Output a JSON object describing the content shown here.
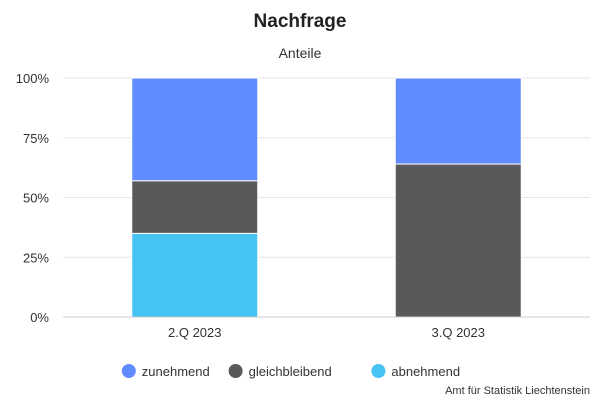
{
  "chart_data": {
    "type": "bar",
    "stacked": true,
    "title": "Nachfrage",
    "subtitle": "Anteile",
    "categories": [
      "2.Q 2023",
      "3.Q 2023"
    ],
    "series": [
      {
        "name": "abnehmend",
        "values": [
          35,
          0
        ],
        "color": "#45c3f2"
      },
      {
        "name": "gleichbleibend",
        "values": [
          22,
          64
        ],
        "color": "#59585b"
      },
      {
        "name": "zunehmend",
        "values": [
          43,
          36
        ],
        "color": "#608cff"
      }
    ],
    "legend_order": [
      "zunehmend",
      "gleichbleibend",
      "abnehmend"
    ],
    "ylim": [
      0,
      100
    ],
    "yticks": [
      0,
      25,
      50,
      75,
      100
    ],
    "ytick_suffix": "%",
    "grid": true,
    "legend_position": "bottom",
    "credits": "Amt für Statistik Liechtenstein"
  }
}
